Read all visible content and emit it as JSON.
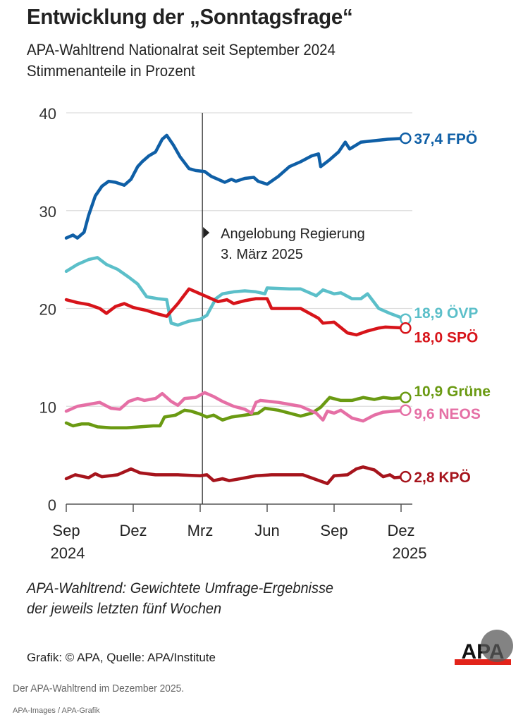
{
  "header": {
    "title": "Entwicklung der „Sonntagsfrage“",
    "subtitle_line1": "APA-Wahltrend Nationalrat seit September 2024",
    "subtitle_line2": "Stimmenanteile in Prozent"
  },
  "footer": {
    "note_line1": "APA-Wahltrend: Gewichtete Umfrage-Ergebnisse",
    "note_line2": "der jeweils letzten fünf Wochen",
    "credit": "Grafik: © APA, Quelle: APA/Institute",
    "logo_text": "APA",
    "caption": "Der APA-Wahltrend im Dezember 2025.",
    "source": "APA-Images / APA-Grafik"
  },
  "chart_data": {
    "type": "line",
    "title": "Entwicklung der „Sonntagsfrage“",
    "subtitle": "APA-Wahltrend Nationalrat seit September 2024 – Stimmenanteile in Prozent",
    "xlabel": "",
    "ylabel": "Stimmenanteile in Prozent",
    "x_unit": "months since Sep 2024",
    "xlim": [
      0,
      15.2
    ],
    "ylim": [
      0,
      40
    ],
    "yticks": [
      0,
      10,
      20,
      30,
      40
    ],
    "ytick_labels": [
      "0",
      "10",
      "20",
      "30",
      "40"
    ],
    "xticks": [
      0,
      3,
      6,
      9,
      12,
      15
    ],
    "xtick_labels": [
      "Sep",
      "Dez",
      "Mrz",
      "Jun",
      "Sep",
      "Dez"
    ],
    "xtick_years": [
      "2024",
      "",
      "",
      "",
      "",
      "2025"
    ],
    "grid": true,
    "annotation": {
      "x": 6.1,
      "line1": "Angelobung Regierung",
      "line2": "3. März 2025"
    },
    "series": [
      {
        "name": "FPÖ",
        "color": "#0f5fa6",
        "end_label": "37,4 FPÖ",
        "end_value": 37.4,
        "x": [
          0,
          0.3,
          0.5,
          0.8,
          1.0,
          1.3,
          1.6,
          1.9,
          2.2,
          2.6,
          2.9,
          3.2,
          3.4,
          3.7,
          4.0,
          4.3,
          4.5,
          4.8,
          5.1,
          5.5,
          5.8,
          6.2,
          6.5,
          6.8,
          7.1,
          7.4,
          7.6,
          8.0,
          8.4,
          8.6,
          9.0,
          9.5,
          10.0,
          10.5,
          11.0,
          11.3,
          11.4,
          11.8,
          12.2,
          12.5,
          12.7,
          13.2,
          13.6,
          14.0,
          14.4,
          15.2
        ],
        "y": [
          27.2,
          27.5,
          27.2,
          27.8,
          29.5,
          31.5,
          32.5,
          33.0,
          32.9,
          32.6,
          33.2,
          34.5,
          35.0,
          35.6,
          36.0,
          37.3,
          37.7,
          36.7,
          35.5,
          34.3,
          34.1,
          34.0,
          33.5,
          33.2,
          32.9,
          33.2,
          33.0,
          33.3,
          33.4,
          33.0,
          32.7,
          33.5,
          34.5,
          35.0,
          35.6,
          35.8,
          34.5,
          35.2,
          36.0,
          37.0,
          36.3,
          37.0,
          37.1,
          37.2,
          37.3,
          37.4
        ]
      },
      {
        "name": "ÖVP",
        "color": "#5bbfc9",
        "end_label": "18,9 ÖVP",
        "end_value": 18.9,
        "x": [
          0,
          0.5,
          1.0,
          1.4,
          1.8,
          2.3,
          2.8,
          3.2,
          3.6,
          4.1,
          4.5,
          4.7,
          5.0,
          5.5,
          6.0,
          6.3,
          6.7,
          7.0,
          7.5,
          8.0,
          8.5,
          8.9,
          9.0,
          10.0,
          10.5,
          11.2,
          11.5,
          12.0,
          12.3,
          12.8,
          13.2,
          13.5,
          14.0,
          14.5,
          15.2
        ],
        "y": [
          23.8,
          24.5,
          25.0,
          25.2,
          24.5,
          24.0,
          23.2,
          22.5,
          21.2,
          21.0,
          20.9,
          18.5,
          18.3,
          18.7,
          18.9,
          19.3,
          21.0,
          21.5,
          21.7,
          21.8,
          21.7,
          21.5,
          22.1,
          22.0,
          22.0,
          21.3,
          21.9,
          21.5,
          21.6,
          21.0,
          21.0,
          21.5,
          20.0,
          19.5,
          18.9
        ]
      },
      {
        "name": "SPÖ",
        "color": "#d7141a",
        "end_label": "18,0 SPÖ",
        "end_value": 18.0,
        "x": [
          0,
          0.5,
          1.0,
          1.5,
          1.8,
          2.2,
          2.6,
          3.0,
          3.4,
          3.6,
          4.0,
          4.5,
          5.0,
          5.5,
          6.0,
          6.3,
          6.8,
          7.2,
          7.5,
          8.0,
          8.5,
          9.0,
          9.2,
          10.0,
          10.5,
          11.3,
          11.5,
          12.0,
          12.6,
          13.0,
          13.5,
          14.0,
          14.3,
          15.2
        ],
        "y": [
          20.9,
          20.6,
          20.4,
          20.0,
          19.5,
          20.2,
          20.5,
          20.1,
          19.9,
          19.8,
          19.5,
          19.2,
          20.5,
          22.0,
          21.5,
          21.2,
          20.7,
          20.9,
          20.5,
          20.8,
          21.0,
          21.0,
          20.0,
          20.0,
          20.0,
          19.0,
          18.5,
          18.6,
          17.5,
          17.3,
          17.7,
          18.0,
          18.1,
          18.0
        ]
      },
      {
        "name": "Grüne",
        "color": "#6a9a12",
        "end_label": "10,9 Grüne",
        "end_value": 10.9,
        "x": [
          0,
          0.3,
          0.7,
          1.0,
          1.4,
          2.0,
          2.7,
          3.3,
          3.9,
          4.2,
          4.4,
          4.9,
          5.3,
          5.6,
          6.0,
          6.3,
          6.6,
          7.0,
          7.4,
          8.0,
          8.6,
          8.9,
          9.5,
          10.5,
          11.0,
          11.4,
          11.8,
          12.3,
          12.8,
          13.3,
          13.8,
          14.2,
          14.6,
          15.2
        ],
        "y": [
          8.3,
          8.0,
          8.2,
          8.2,
          7.9,
          7.8,
          7.8,
          7.9,
          8.0,
          8.0,
          8.9,
          9.1,
          9.6,
          9.5,
          9.2,
          8.9,
          9.1,
          8.6,
          8.9,
          9.1,
          9.3,
          9.8,
          9.6,
          9.0,
          9.3,
          9.9,
          10.9,
          10.6,
          10.6,
          10.9,
          10.7,
          10.9,
          10.8,
          10.9
        ]
      },
      {
        "name": "NEOS",
        "color": "#e56fa5",
        "end_label": "9,6 NEOS",
        "end_value": 9.6,
        "x": [
          0,
          0.5,
          1.0,
          1.5,
          2.0,
          2.4,
          2.8,
          3.2,
          3.5,
          4.0,
          4.3,
          4.7,
          5.0,
          5.3,
          5.8,
          6.2,
          6.6,
          7.0,
          7.5,
          8.0,
          8.3,
          8.5,
          8.7,
          9.5,
          10.5,
          11.2,
          11.5,
          11.7,
          12.0,
          12.3,
          12.8,
          13.3,
          13.8,
          14.2,
          15.2
        ],
        "y": [
          9.5,
          10.0,
          10.2,
          10.4,
          9.8,
          9.7,
          10.5,
          10.8,
          10.6,
          10.8,
          11.3,
          10.5,
          10.1,
          10.8,
          10.9,
          11.4,
          11.0,
          10.5,
          10.0,
          9.7,
          9.3,
          10.4,
          10.6,
          10.4,
          10.0,
          9.3,
          8.6,
          9.5,
          9.3,
          9.6,
          8.8,
          8.5,
          9.1,
          9.4,
          9.6
        ]
      },
      {
        "name": "KPÖ",
        "color": "#a6141c",
        "end_label": "2,8 KPÖ",
        "end_value": 2.8,
        "x": [
          0,
          0.4,
          1.0,
          1.3,
          1.6,
          2.3,
          2.9,
          3.3,
          4.0,
          5.0,
          6.0,
          6.3,
          6.6,
          7.0,
          7.3,
          7.8,
          8.5,
          9.2,
          10.0,
          10.6,
          11.7,
          12.0,
          12.6,
          13.0,
          13.3,
          13.8,
          14.2,
          14.5,
          14.7,
          15.2
        ],
        "y": [
          2.6,
          3.0,
          2.7,
          3.1,
          2.8,
          3.0,
          3.6,
          3.2,
          3.0,
          3.0,
          2.9,
          3.0,
          2.4,
          2.6,
          2.4,
          2.6,
          2.9,
          3.0,
          3.0,
          3.0,
          2.1,
          2.9,
          3.0,
          3.6,
          3.8,
          3.5,
          2.8,
          3.0,
          2.7,
          2.8
        ]
      }
    ]
  }
}
